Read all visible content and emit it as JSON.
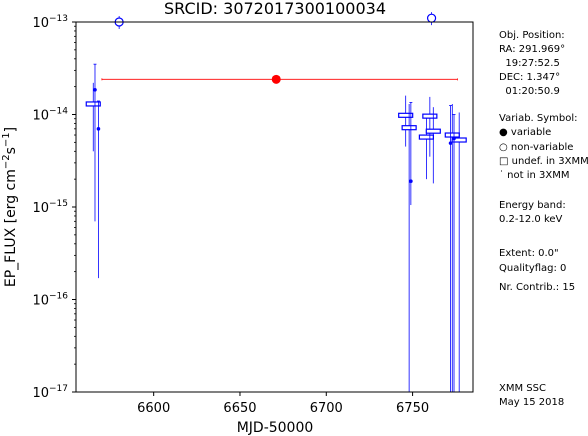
{
  "chart_data": {
    "type": "scatter",
    "title": "SRCID: 3072017300100034",
    "xlabel": "MJD-50000",
    "ylabel_main": "EP_FLUX [erg cm",
    "ylabel_exp1": "−2",
    "ylabel_mid": "s",
    "ylabel_exp2": "−1",
    "ylabel_end": "]",
    "xlim": [
      6555,
      6785
    ],
    "ylim": [
      1e-17,
      1e-13
    ],
    "yscale": "log",
    "x_ticks": [
      {
        "value": 6600,
        "label": "6600"
      },
      {
        "value": 6650,
        "label": "6650"
      },
      {
        "value": 6700,
        "label": "6700"
      },
      {
        "value": 6750,
        "label": "6750"
      }
    ],
    "y_ticks": [
      {
        "value": 1e-13,
        "base": "10",
        "exp": "−13"
      },
      {
        "value": 1e-14,
        "base": "10",
        "exp": "−14"
      },
      {
        "value": 1e-15,
        "base": "10",
        "exp": "−15"
      },
      {
        "value": 1e-16,
        "base": "10",
        "exp": "−16"
      },
      {
        "value": 1e-17,
        "base": "10",
        "exp": "−17"
      }
    ],
    "mean_flux": {
      "value": 2.4e-14,
      "x_start": 6570,
      "x_end": 6776,
      "x_marker": 6671
    },
    "upper_points": [
      {
        "x": 6580,
        "y": 1e-13
      },
      {
        "x": 6761,
        "y": 1.1e-13
      }
    ],
    "boxes": [
      {
        "x": 6565,
        "y": 1.3e-14,
        "ylo": 4e-15,
        "yhi": 2.2e-14,
        "w": 6
      },
      {
        "x": 6746,
        "y": 9.8e-15,
        "ylo": 4.5e-15,
        "yhi": 1.6e-14,
        "w": 6
      },
      {
        "x": 6748,
        "y": 7.2e-15,
        "ylo": 1e-17,
        "yhi": 1.3e-14,
        "w": 6
      },
      {
        "x": 6758,
        "y": 5.7e-15,
        "ylo": 2e-15,
        "yhi": 1e-14,
        "w": 6
      },
      {
        "x": 6760,
        "y": 9.6e-15,
        "ylo": 3.5e-15,
        "yhi": 1.55e-14,
        "w": 6
      },
      {
        "x": 6762,
        "y": 6.6e-15,
        "ylo": 1.8e-15,
        "yhi": 1.2e-14,
        "w": 6
      },
      {
        "x": 6773,
        "y": 6e-15,
        "ylo": 1e-17,
        "yhi": 1.3e-14,
        "w": 6
      },
      {
        "x": 6777,
        "y": 5.3e-15,
        "ylo": 1e-17,
        "yhi": 1.05e-14,
        "w": 6
      }
    ],
    "dots": [
      {
        "x": 6566,
        "y": 1.85e-14,
        "ylo": 7e-16,
        "yhi": 3.5e-14
      },
      {
        "x": 6568,
        "y": 7e-15,
        "ylo": 1.7e-16,
        "yhi": 1.4e-14
      },
      {
        "x": 6749,
        "y": 1.9e-15,
        "ylo": 1.05e-15,
        "yhi": 1.35e-14
      },
      {
        "x": 6772,
        "y": 4.9e-15,
        "ylo": 1e-17,
        "yhi": 1.25e-14
      },
      {
        "x": 6774,
        "y": 5.5e-15,
        "ylo": 1e-17,
        "yhi": 1e-14
      }
    ],
    "colors": {
      "data": "#0000ff",
      "mean": "#ff0000"
    }
  },
  "sidebar": {
    "obj_position": "Obj. Position:",
    "ra": "RA: 291.969°",
    "ra_hms": "  19:27:52.5",
    "dec": "DEC: 1.347°",
    "dec_dms": "  01:20:50.9",
    "variab_symbol": "Variab. Symbol:",
    "sym_variable": "● variable",
    "sym_nonvariable": "○ non-variable",
    "sym_undef": "□ undef. in 3XMM",
    "sym_notin": "˙ not in 3XMM",
    "energy_band": "Energy band:",
    "energy_range": "0.2-12.0 keV",
    "extent": "Extent: 0.0\"",
    "qualityflag": "Qualityflag: 0",
    "nr_contrib": "Nr. Contrib.: 15",
    "xmm_ssc": "XMM SSC",
    "date": "May 15 2018"
  }
}
